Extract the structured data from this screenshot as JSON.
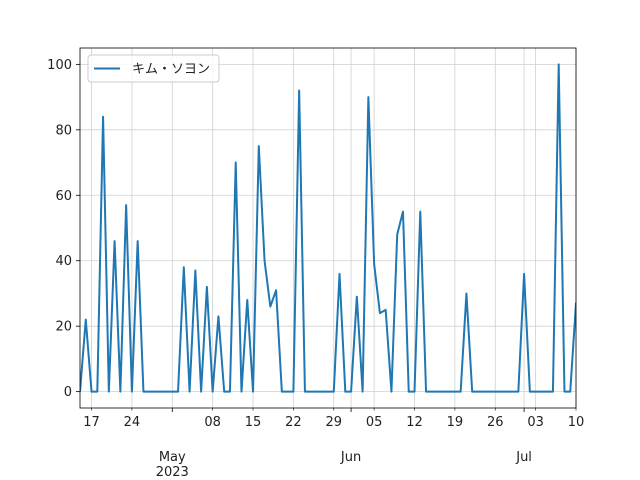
{
  "chart_data": {
    "type": "line",
    "title": "",
    "xlabel": "",
    "ylabel": "",
    "x_start": "2023-04-15",
    "x_end": "2023-07-10",
    "xlim": [
      "2023-04-15",
      "2023-07-10"
    ],
    "ylim": [
      -5,
      105
    ],
    "grid": true,
    "legend_position": "top-left",
    "x_minor_ticks": [
      {
        "date": "2023-04-17",
        "label": "17"
      },
      {
        "date": "2023-04-24",
        "label": "24"
      },
      {
        "date": "2023-05-08",
        "label": "08"
      },
      {
        "date": "2023-05-15",
        "label": "15"
      },
      {
        "date": "2023-05-22",
        "label": "22"
      },
      {
        "date": "2023-05-29",
        "label": "29"
      },
      {
        "date": "2023-06-05",
        "label": "05"
      },
      {
        "date": "2023-06-12",
        "label": "12"
      },
      {
        "date": "2023-06-19",
        "label": "19"
      },
      {
        "date": "2023-06-26",
        "label": "26"
      },
      {
        "date": "2023-07-03",
        "label": "03"
      },
      {
        "date": "2023-07-10",
        "label": "10"
      }
    ],
    "x_major_ticks": [
      {
        "date": "2023-05-01",
        "label": "May",
        "label2": "2023"
      },
      {
        "date": "2023-06-01",
        "label": "Jun",
        "label2": ""
      },
      {
        "date": "2023-07-01",
        "label": "Jul",
        "label2": ""
      }
    ],
    "y_ticks": [
      {
        "value": 0,
        "label": "0"
      },
      {
        "value": 20,
        "label": "20"
      },
      {
        "value": 40,
        "label": "40"
      },
      {
        "value": 60,
        "label": "60"
      },
      {
        "value": 80,
        "label": "80"
      },
      {
        "value": 100,
        "label": "100"
      }
    ],
    "series": [
      {
        "name": "キム・ソヨン",
        "color": "#1f77b4",
        "points": [
          {
            "x": "2023-04-15",
            "y": 0
          },
          {
            "x": "2023-04-16",
            "y": 22
          },
          {
            "x": "2023-04-17",
            "y": 0
          },
          {
            "x": "2023-04-18",
            "y": 0
          },
          {
            "x": "2023-04-19",
            "y": 84
          },
          {
            "x": "2023-04-20",
            "y": 0
          },
          {
            "x": "2023-04-21",
            "y": 46
          },
          {
            "x": "2023-04-22",
            "y": 0
          },
          {
            "x": "2023-04-23",
            "y": 57
          },
          {
            "x": "2023-04-24",
            "y": 0
          },
          {
            "x": "2023-04-25",
            "y": 46
          },
          {
            "x": "2023-04-26",
            "y": 0
          },
          {
            "x": "2023-04-27",
            "y": 0
          },
          {
            "x": "2023-04-28",
            "y": 0
          },
          {
            "x": "2023-04-29",
            "y": 0
          },
          {
            "x": "2023-04-30",
            "y": 0
          },
          {
            "x": "2023-05-01",
            "y": 0
          },
          {
            "x": "2023-05-02",
            "y": 0
          },
          {
            "x": "2023-05-03",
            "y": 38
          },
          {
            "x": "2023-05-04",
            "y": 0
          },
          {
            "x": "2023-05-05",
            "y": 37
          },
          {
            "x": "2023-05-06",
            "y": 0
          },
          {
            "x": "2023-05-07",
            "y": 32
          },
          {
            "x": "2023-05-08",
            "y": 0
          },
          {
            "x": "2023-05-09",
            "y": 23
          },
          {
            "x": "2023-05-10",
            "y": 0
          },
          {
            "x": "2023-05-11",
            "y": 0
          },
          {
            "x": "2023-05-12",
            "y": 70
          },
          {
            "x": "2023-05-13",
            "y": 0
          },
          {
            "x": "2023-05-14",
            "y": 28
          },
          {
            "x": "2023-05-15",
            "y": 0
          },
          {
            "x": "2023-05-16",
            "y": 75
          },
          {
            "x": "2023-05-17",
            "y": 40
          },
          {
            "x": "2023-05-18",
            "y": 26
          },
          {
            "x": "2023-05-19",
            "y": 31
          },
          {
            "x": "2023-05-20",
            "y": 0
          },
          {
            "x": "2023-05-21",
            "y": 0
          },
          {
            "x": "2023-05-22",
            "y": 0
          },
          {
            "x": "2023-05-23",
            "y": 92
          },
          {
            "x": "2023-05-24",
            "y": 0
          },
          {
            "x": "2023-05-25",
            "y": 0
          },
          {
            "x": "2023-05-26",
            "y": 0
          },
          {
            "x": "2023-05-27",
            "y": 0
          },
          {
            "x": "2023-05-28",
            "y": 0
          },
          {
            "x": "2023-05-29",
            "y": 0
          },
          {
            "x": "2023-05-30",
            "y": 36
          },
          {
            "x": "2023-05-31",
            "y": 0
          },
          {
            "x": "2023-06-01",
            "y": 0
          },
          {
            "x": "2023-06-02",
            "y": 29
          },
          {
            "x": "2023-06-03",
            "y": 0
          },
          {
            "x": "2023-06-04",
            "y": 90
          },
          {
            "x": "2023-06-05",
            "y": 39
          },
          {
            "x": "2023-06-06",
            "y": 24
          },
          {
            "x": "2023-06-07",
            "y": 25
          },
          {
            "x": "2023-06-08",
            "y": 0
          },
          {
            "x": "2023-06-09",
            "y": 48
          },
          {
            "x": "2023-06-10",
            "y": 55
          },
          {
            "x": "2023-06-11",
            "y": 0
          },
          {
            "x": "2023-06-12",
            "y": 0
          },
          {
            "x": "2023-06-13",
            "y": 55
          },
          {
            "x": "2023-06-14",
            "y": 0
          },
          {
            "x": "2023-06-15",
            "y": 0
          },
          {
            "x": "2023-06-16",
            "y": 0
          },
          {
            "x": "2023-06-17",
            "y": 0
          },
          {
            "x": "2023-06-18",
            "y": 0
          },
          {
            "x": "2023-06-19",
            "y": 0
          },
          {
            "x": "2023-06-20",
            "y": 0
          },
          {
            "x": "2023-06-21",
            "y": 30
          },
          {
            "x": "2023-06-22",
            "y": 0
          },
          {
            "x": "2023-06-23",
            "y": 0
          },
          {
            "x": "2023-06-24",
            "y": 0
          },
          {
            "x": "2023-06-25",
            "y": 0
          },
          {
            "x": "2023-06-26",
            "y": 0
          },
          {
            "x": "2023-06-27",
            "y": 0
          },
          {
            "x": "2023-06-28",
            "y": 0
          },
          {
            "x": "2023-06-29",
            "y": 0
          },
          {
            "x": "2023-06-30",
            "y": 0
          },
          {
            "x": "2023-07-01",
            "y": 36
          },
          {
            "x": "2023-07-02",
            "y": 0
          },
          {
            "x": "2023-07-03",
            "y": 0
          },
          {
            "x": "2023-07-04",
            "y": 0
          },
          {
            "x": "2023-07-05",
            "y": 0
          },
          {
            "x": "2023-07-06",
            "y": 0
          },
          {
            "x": "2023-07-07",
            "y": 100
          },
          {
            "x": "2023-07-08",
            "y": 0
          },
          {
            "x": "2023-07-09",
            "y": 0
          },
          {
            "x": "2023-07-10",
            "y": 27
          },
          {
            "x": "2023-07-11",
            "y": 0
          }
        ]
      }
    ]
  }
}
